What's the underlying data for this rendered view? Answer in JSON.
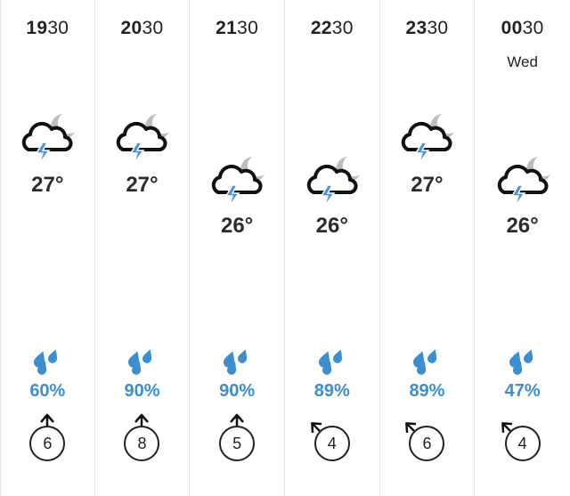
{
  "forecast": [
    {
      "hour_bold": "19",
      "minute": "30",
      "day": "",
      "temp": "27°",
      "rain": "60%",
      "wind_speed": "6",
      "wind_dir_deg": 0,
      "icon": "thunder-cloud-night-icon",
      "high": true
    },
    {
      "hour_bold": "20",
      "minute": "30",
      "day": "",
      "temp": "27°",
      "rain": "90%",
      "wind_speed": "8",
      "wind_dir_deg": 0,
      "icon": "thunder-cloud-night-icon",
      "high": true
    },
    {
      "hour_bold": "21",
      "minute": "30",
      "day": "",
      "temp": "26°",
      "rain": "90%",
      "wind_speed": "5",
      "wind_dir_deg": 0,
      "icon": "thunder-cloud-night-icon",
      "high": false
    },
    {
      "hour_bold": "22",
      "minute": "30",
      "day": "",
      "temp": "26°",
      "rain": "89%",
      "wind_speed": "4",
      "wind_dir_deg": -45,
      "icon": "thunder-cloud-night-icon",
      "high": false
    },
    {
      "hour_bold": "23",
      "minute": "30",
      "day": "",
      "temp": "27°",
      "rain": "89%",
      "wind_speed": "6",
      "wind_dir_deg": -45,
      "icon": "thunder-cloud-night-icon",
      "high": true
    },
    {
      "hour_bold": "00",
      "minute": "30",
      "day": "Wed",
      "temp": "26°",
      "rain": "47%",
      "wind_speed": "4",
      "wind_dir_deg": -45,
      "icon": "thunder-cloud-night-icon",
      "high": false
    }
  ],
  "colors": {
    "rain": "#3d8ed0",
    "lightning": "#4a90d9",
    "moon": "#bdbdbd",
    "text": "#222222"
  }
}
